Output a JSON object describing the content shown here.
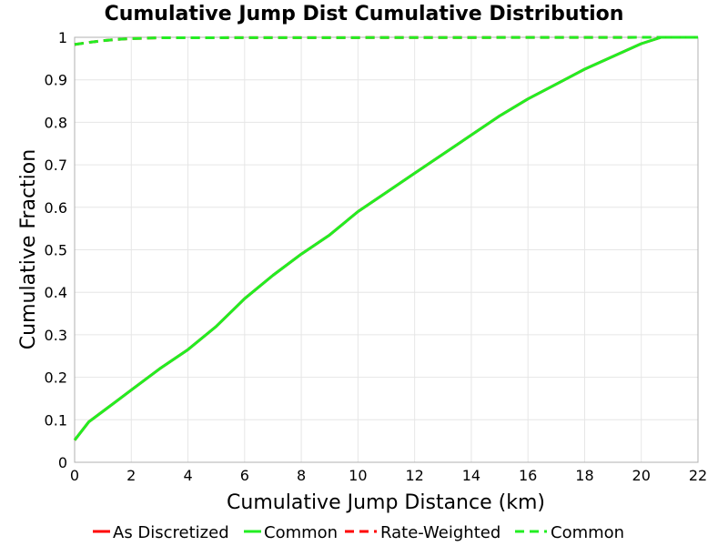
{
  "chart_data": {
    "type": "line",
    "title": "Cumulative Jump Dist Cumulative Distribution",
    "xlabel": "Cumulative Jump Distance (km)",
    "ylabel": "Cumulative Fraction",
    "xlim": [
      0,
      22
    ],
    "ylim": [
      0,
      1
    ],
    "xticks": [
      0,
      2,
      4,
      6,
      8,
      10,
      12,
      14,
      16,
      18,
      20,
      22
    ],
    "yticks": [
      0,
      0.1,
      0.2,
      0.3,
      0.4,
      0.5,
      0.6,
      0.7,
      0.8,
      0.9,
      1
    ],
    "ytick_labels": [
      "0",
      "0.1",
      "0.2",
      "0.3",
      "0.4",
      "0.5",
      "0.6",
      "0.7",
      "0.8",
      "0.9",
      "1"
    ],
    "grid": true,
    "legend_position": "bottom",
    "series": [
      {
        "name": "As Discretized",
        "color": "#ff0000",
        "dash": "solid",
        "x": [
          0,
          0.5,
          1,
          2,
          3,
          4,
          5,
          6,
          7,
          8,
          9,
          10,
          11,
          12,
          13,
          14,
          15,
          16,
          17,
          18,
          19,
          20,
          20.7,
          22
        ],
        "y": [
          0.052,
          0.095,
          0.12,
          0.17,
          0.22,
          0.265,
          0.32,
          0.385,
          0.44,
          0.49,
          0.535,
          0.59,
          0.635,
          0.68,
          0.725,
          0.77,
          0.815,
          0.855,
          0.89,
          0.925,
          0.955,
          0.985,
          1.0,
          1.0
        ]
      },
      {
        "name": "Common",
        "color": "#22ee22",
        "dash": "solid",
        "x": [
          0,
          0.5,
          1,
          2,
          3,
          4,
          5,
          6,
          7,
          8,
          9,
          10,
          11,
          12,
          13,
          14,
          15,
          16,
          17,
          18,
          19,
          20,
          20.7,
          22
        ],
        "y": [
          0.052,
          0.095,
          0.12,
          0.17,
          0.22,
          0.265,
          0.32,
          0.385,
          0.44,
          0.49,
          0.535,
          0.59,
          0.635,
          0.68,
          0.725,
          0.77,
          0.815,
          0.855,
          0.89,
          0.925,
          0.955,
          0.985,
          1.0,
          1.0
        ]
      },
      {
        "name": "Rate-Weighted",
        "color": "#ff0000",
        "dash": "dashed",
        "x": [
          0,
          0.5,
          1,
          1.5,
          2,
          3,
          22
        ],
        "y": [
          0.983,
          0.988,
          0.992,
          0.995,
          0.997,
          0.999,
          1.0
        ]
      },
      {
        "name": "Common",
        "color": "#22ee22",
        "dash": "dashed",
        "x": [
          0,
          0.5,
          1,
          1.5,
          2,
          3,
          22
        ],
        "y": [
          0.983,
          0.988,
          0.992,
          0.995,
          0.997,
          0.999,
          1.0
        ]
      }
    ]
  }
}
